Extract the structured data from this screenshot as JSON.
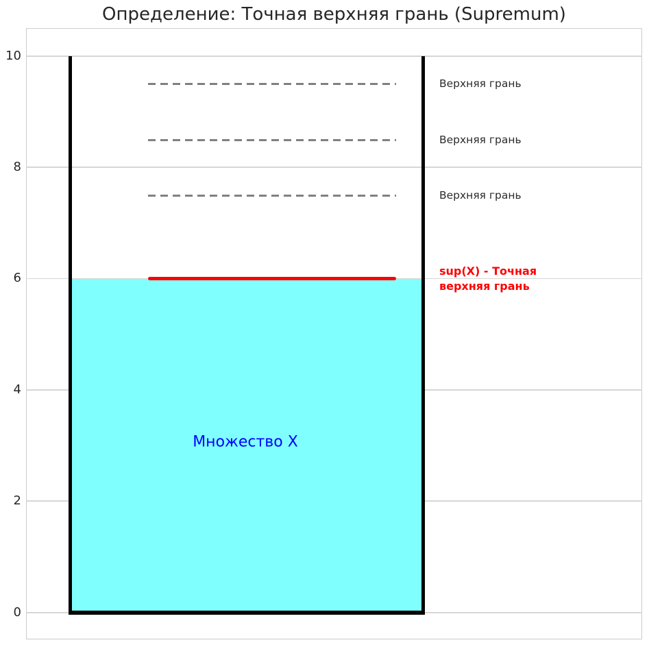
{
  "figure": {
    "title": "Определение: Точная верхняя грань (Supremum)"
  },
  "axis": {
    "ytick_labels": [
      "10",
      "8",
      "6",
      "4",
      "2",
      "0"
    ]
  },
  "annotations": {
    "upper_bound_labels": [
      "Верхняя грань",
      "Верхняя грань",
      "Верхняя грань"
    ],
    "supremum_label_line1": "sup(X) - Точная",
    "supremum_label_line2": "верхняя грань",
    "set_label": "Множество X"
  },
  "colors": {
    "set_fill": "#80ffff",
    "supremum_line": "#ff0000",
    "supremum_text": "#ff0000",
    "set_label_text": "#0000ff",
    "upper_bound_dash": "#808080",
    "vessel_line": "#000000",
    "grid": "#d6d6d6",
    "axes_edge": "#cccccc",
    "text": "#262626"
  },
  "chart_data": {
    "type": "area",
    "title": "Определение: Точная верхняя грань (Supremum)",
    "xlabel": "",
    "ylabel": "",
    "yticks": [
      0,
      2,
      4,
      6,
      8,
      10
    ],
    "ylim": [
      -0.5,
      10.5
    ],
    "grid": true,
    "legend": "none",
    "vessel": {
      "top": 10,
      "bottom": 0,
      "line_color": "#000000"
    },
    "set_region": {
      "label": "Множество X",
      "y_from": 0,
      "y_to": 6,
      "fill_color": "#80ffff",
      "label_color": "#0000ff"
    },
    "supremum": {
      "value": 6,
      "label": "sup(X) - Точная верхняя грань",
      "color": "#ff0000",
      "line_style": "solid"
    },
    "upper_bounds": [
      {
        "value": 9.5,
        "label": "Верхняя грань",
        "line_style": "dashed",
        "color": "#808080"
      },
      {
        "value": 8.5,
        "label": "Верхняя грань",
        "line_style": "dashed",
        "color": "#808080"
      },
      {
        "value": 7.5,
        "label": "Верхняя грань",
        "line_style": "dashed",
        "color": "#808080"
      }
    ]
  }
}
